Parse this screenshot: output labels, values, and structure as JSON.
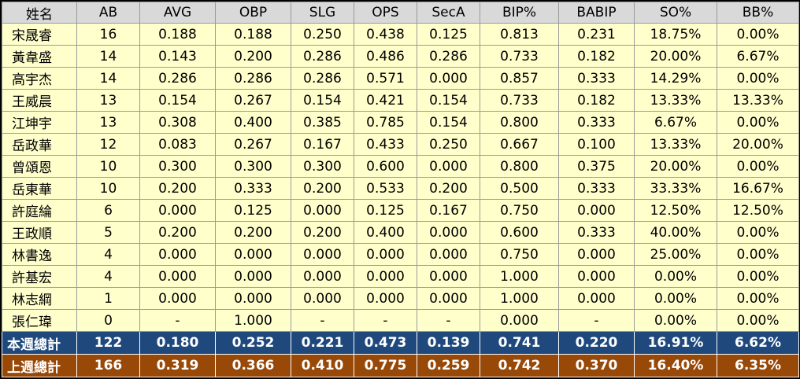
{
  "columns": [
    "姓名",
    "AB",
    "AVG",
    "OBP",
    "SLG",
    "OPS",
    "SecA",
    "BIP%",
    "BABIP",
    "SO%",
    "BB%"
  ],
  "players": [
    [
      "宋晟睿",
      "16",
      "0.188",
      "0.188",
      "0.250",
      "0.438",
      "0.125",
      "0.813",
      "0.231",
      "18.75%",
      "0.00%"
    ],
    [
      "黃韋盛",
      "14",
      "0.143",
      "0.200",
      "0.286",
      "0.486",
      "0.286",
      "0.733",
      "0.182",
      "20.00%",
      "6.67%"
    ],
    [
      "高宇杰",
      "14",
      "0.286",
      "0.286",
      "0.286",
      "0.571",
      "0.000",
      "0.857",
      "0.333",
      "14.29%",
      "0.00%"
    ],
    [
      "王威晨",
      "13",
      "0.154",
      "0.267",
      "0.154",
      "0.421",
      "0.154",
      "0.733",
      "0.182",
      "13.33%",
      "13.33%"
    ],
    [
      "江坤宇",
      "13",
      "0.308",
      "0.400",
      "0.385",
      "0.785",
      "0.154",
      "0.800",
      "0.333",
      "6.67%",
      "0.00%"
    ],
    [
      "岳政華",
      "12",
      "0.083",
      "0.267",
      "0.167",
      "0.433",
      "0.250",
      "0.667",
      "0.100",
      "13.33%",
      "20.00%"
    ],
    [
      "曾頌恩",
      "10",
      "0.300",
      "0.300",
      "0.300",
      "0.600",
      "0.000",
      "0.800",
      "0.375",
      "20.00%",
      "0.00%"
    ],
    [
      "岳東華",
      "10",
      "0.200",
      "0.333",
      "0.200",
      "0.533",
      "0.200",
      "0.500",
      "0.333",
      "33.33%",
      "16.67%"
    ],
    [
      "許庭綸",
      "6",
      "0.000",
      "0.125",
      "0.000",
      "0.125",
      "0.167",
      "0.750",
      "0.000",
      "12.50%",
      "12.50%"
    ],
    [
      "王政順",
      "5",
      "0.200",
      "0.200",
      "0.200",
      "0.400",
      "0.000",
      "0.600",
      "0.333",
      "40.00%",
      "0.00%"
    ],
    [
      "林書逸",
      "4",
      "0.000",
      "0.000",
      "0.000",
      "0.000",
      "0.000",
      "0.750",
      "0.000",
      "25.00%",
      "0.00%"
    ],
    [
      "許基宏",
      "4",
      "0.000",
      "0.000",
      "0.000",
      "0.000",
      "0.000",
      "1.000",
      "0.000",
      "0.00%",
      "0.00%"
    ],
    [
      "林志綱",
      "1",
      "0.000",
      "0.000",
      "0.000",
      "0.000",
      "0.000",
      "1.000",
      "0.000",
      "0.00%",
      "0.00%"
    ],
    [
      "張仁瑋",
      "0",
      "-",
      "1.000",
      "-",
      "-",
      "-",
      "0.000",
      "-",
      "0.00%",
      "0.00%"
    ]
  ],
  "totals": {
    "this_week": [
      "本週總計",
      "122",
      "0.180",
      "0.252",
      "0.221",
      "0.473",
      "0.139",
      "0.741",
      "0.220",
      "16.91%",
      "6.62%"
    ],
    "last_week": [
      "上週總計",
      "166",
      "0.319",
      "0.366",
      "0.410",
      "0.775",
      "0.259",
      "0.742",
      "0.370",
      "16.40%",
      "6.35%"
    ]
  },
  "colors": {
    "header_bg": "#d9d9d9",
    "row_bg": "#ffffcc",
    "this_week_bg": "#1f497d",
    "last_week_bg": "#984807"
  }
}
